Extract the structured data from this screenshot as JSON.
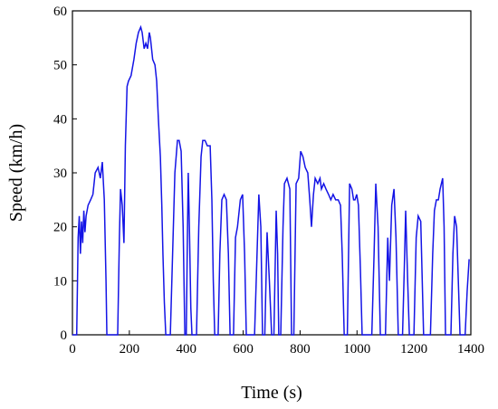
{
  "chart_data": {
    "type": "line",
    "x_label": "Time (s)",
    "y_label": "Speed (km/h)",
    "xlim": [
      0,
      1400
    ],
    "ylim": [
      0,
      60
    ],
    "xticks": [
      0,
      200,
      400,
      600,
      800,
      1000,
      1200,
      1400
    ],
    "yticks": [
      0,
      10,
      20,
      30,
      40,
      50,
      60
    ],
    "series": [
      {
        "color": "#1414e6",
        "x": [
          0,
          15,
          20,
          24,
          28,
          32,
          36,
          40,
          44,
          48,
          55,
          64,
          72,
          80,
          90,
          98,
          105,
          112,
          118,
          121,
          150,
          159,
          165,
          169,
          175,
          181,
          186,
          192,
          197,
          206,
          216,
          224,
          232,
          240,
          245,
          252,
          258,
          264,
          270,
          274,
          282,
          290,
          296,
          302,
          309,
          314,
          318,
          323,
          328,
          344,
          352,
          360,
          369,
          375,
          382,
          389,
          395,
          400,
          404,
          407,
          411,
          416,
          420,
          436,
          444,
          452,
          458,
          466,
          474,
          484,
          490,
          495,
          500,
          512,
          518,
          525,
          533,
          541,
          548,
          554,
          566,
          573,
          580,
          590,
          598,
          605,
          611,
          640,
          647,
          655,
          662,
          668,
          676,
          684,
          692,
          700,
          708,
          716,
          721,
          725,
          732,
          740,
          745,
          754,
          764,
          770,
          778,
          786,
          795,
          802,
          810,
          818,
          827,
          834,
          840,
          847,
          853,
          862,
          870,
          875,
          883,
          891,
          900,
          908,
          916,
          925,
          934,
          942,
          948,
          955,
          966,
          974,
          982,
          988,
          993,
          999,
          1005,
          1012,
          1018,
          1052,
          1060,
          1066,
          1074,
          1082,
          1100,
          1108,
          1114,
          1122,
          1130,
          1137,
          1145,
          1160,
          1166,
          1171,
          1178,
          1184,
          1200,
          1208,
          1215,
          1224,
          1234,
          1258,
          1266,
          1272,
          1279,
          1286,
          1292,
          1301,
          1306,
          1311,
          1330,
          1337,
          1343,
          1350,
          1356,
          1362,
          1380,
          1387,
          1394
        ],
        "values": [
          0,
          0,
          18,
          22,
          15,
          21,
          17,
          23,
          19,
          22,
          24,
          25,
          26,
          30,
          31,
          29,
          32,
          25,
          10,
          0,
          0,
          0,
          18,
          27,
          24,
          17,
          35,
          46,
          47,
          48,
          51,
          54,
          56,
          57,
          56,
          53,
          54,
          53,
          56,
          55,
          51,
          50,
          47,
          40,
          33,
          24,
          15,
          6,
          0,
          0,
          15,
          30,
          36,
          36,
          34,
          20,
          0,
          0,
          18,
          30,
          20,
          5,
          0,
          0,
          20,
          33,
          36,
          36,
          35,
          35,
          25,
          10,
          0,
          0,
          15,
          25,
          26,
          25,
          15,
          0,
          0,
          18,
          20,
          25,
          26,
          15,
          0,
          0,
          12,
          26,
          20,
          0,
          0,
          19,
          10,
          0,
          0,
          23,
          15,
          0,
          0,
          20,
          28,
          29,
          27,
          0,
          0,
          28,
          29,
          34,
          33,
          31,
          30,
          25,
          20,
          26,
          29,
          28,
          29,
          27,
          28,
          27,
          26,
          25,
          26,
          25,
          25,
          24,
          15,
          0,
          0,
          28,
          27,
          25,
          25,
          26,
          24,
          12,
          0,
          0,
          15,
          28,
          20,
          0,
          0,
          18,
          10,
          24,
          27,
          18,
          0,
          0,
          12,
          23,
          10,
          0,
          0,
          18,
          22,
          21,
          0,
          0,
          15,
          23,
          25,
          25,
          27,
          29,
          20,
          0,
          0,
          15,
          22,
          20,
          10,
          0,
          0,
          8,
          14
        ]
      }
    ]
  }
}
